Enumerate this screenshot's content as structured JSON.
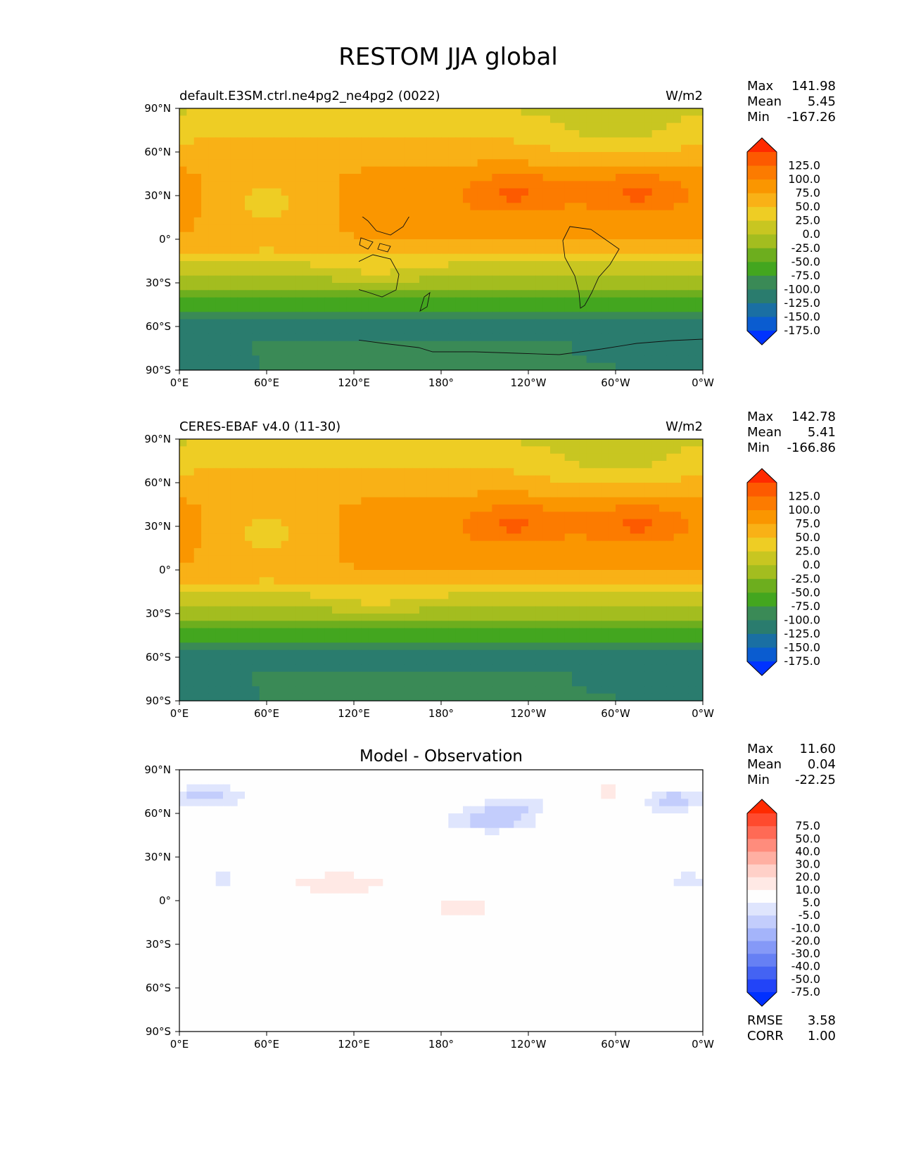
{
  "title": "RESTOM JJA global",
  "lat_ticks": [
    "90°N",
    "60°N",
    "30°N",
    "0°",
    "30°S",
    "60°S",
    "90°S"
  ],
  "lon_ticks": [
    "0°E",
    "60°E",
    "120°E",
    "180°",
    "120°W",
    "60°W",
    "0°W"
  ],
  "panels": [
    {
      "id": "model",
      "left_title": "default.E3SM.ctrl.ne4pg2_ne4pg2 (0022)",
      "center_title": "",
      "units": "W/m2",
      "stats": [
        {
          "label": "Max",
          "value": "141.98"
        },
        {
          "label": "Mean",
          "value": "5.45"
        },
        {
          "label": "Min",
          "value": "-167.26"
        }
      ],
      "colorbar": {
        "labels": [
          "125.0",
          "100.0",
          "75.0",
          "50.0",
          "25.0",
          "0.0",
          "-25.0",
          "-50.0",
          "-75.0",
          "-100.0",
          "-125.0",
          "-150.0",
          "-175.0"
        ],
        "colors": [
          "#ff2a00",
          "#fd5a00",
          "#fc7b00",
          "#fa9600",
          "#f9b116",
          "#eecd24",
          "#c8c621",
          "#a3bd1f",
          "#6dae1e",
          "#43a61f",
          "#3a8a56",
          "#2a7c6e",
          "#1a6fa3",
          "#0a5cd0",
          "#0033ff"
        ]
      },
      "field": "sw"
    },
    {
      "id": "obs",
      "left_title": "CERES-EBAF v4.0 (11-30)",
      "center_title": "",
      "units": "W/m2",
      "stats": [
        {
          "label": "Max",
          "value": "142.78"
        },
        {
          "label": "Mean",
          "value": "5.41"
        },
        {
          "label": "Min",
          "value": "-166.86"
        }
      ],
      "colorbar": {
        "labels": [
          "125.0",
          "100.0",
          "75.0",
          "50.0",
          "25.0",
          "0.0",
          "-25.0",
          "-50.0",
          "-75.0",
          "-100.0",
          "-125.0",
          "-150.0",
          "-175.0"
        ],
        "colors": [
          "#ff2a00",
          "#fd5a00",
          "#fc7b00",
          "#fa9600",
          "#f9b116",
          "#eecd24",
          "#c8c621",
          "#a3bd1f",
          "#6dae1e",
          "#43a61f",
          "#3a8a56",
          "#2a7c6e",
          "#1a6fa3",
          "#0a5cd0",
          "#0033ff"
        ]
      },
      "field": "sw"
    },
    {
      "id": "diff",
      "left_title": "",
      "center_title": "Model - Observation",
      "units": "",
      "stats": [
        {
          "label": "Max",
          "value": "11.60"
        },
        {
          "label": "Mean",
          "value": "0.04"
        },
        {
          "label": "Min",
          "value": "-22.25"
        }
      ],
      "colorbar": {
        "labels": [
          "75.0",
          "50.0",
          "40.0",
          "30.0",
          "20.0",
          "10.0",
          "5.0",
          "-5.0",
          "-10.0",
          "-20.0",
          "-30.0",
          "-40.0",
          "-50.0",
          "-75.0"
        ],
        "colors": [
          "#ff2a00",
          "#ff4a2e",
          "#ff6a55",
          "#ff8c7c",
          "#ffafa2",
          "#ffd0c8",
          "#ffe9e5",
          "#fefefe",
          "#dfe5fd",
          "#c3cdfc",
          "#a4b4fa",
          "#8599f7",
          "#6680f4",
          "#4463f3",
          "#2244f8",
          "#0030ff"
        ]
      },
      "extra_stats": [
        {
          "label": "RMSE",
          "value": "3.58"
        },
        {
          "label": "CORR",
          "value": "1.00"
        }
      ],
      "field": "diff"
    }
  ]
}
